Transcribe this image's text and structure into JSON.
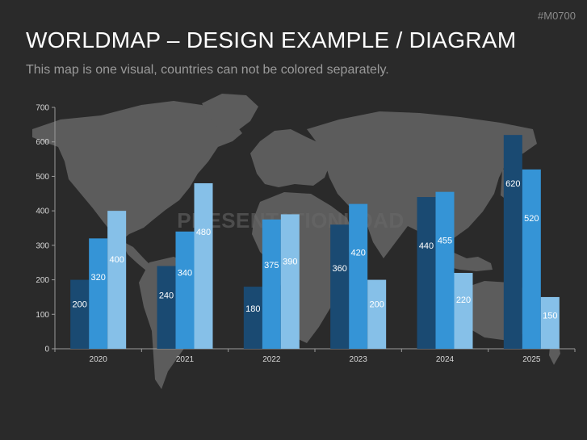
{
  "slide_code": "#M0700",
  "title": "WORLDMAP – DESIGN EXAMPLE / DIAGRAM",
  "subtitle": "This map is one visual, countries can not be colored separately.",
  "watermark": "PRESENTATIONLOAD",
  "colors": {
    "background": "#2a2a2a",
    "map": "#5c5c5c",
    "series": [
      "#1a4a72",
      "#3594d6",
      "#86c0e8"
    ],
    "axis": "#9a9a9a"
  },
  "chart_data": {
    "type": "bar",
    "categories": [
      "2020",
      "2021",
      "2022",
      "2023",
      "2024",
      "2025"
    ],
    "series": [
      {
        "values": [
          200,
          240,
          180,
          360,
          440,
          620
        ]
      },
      {
        "values": [
          320,
          340,
          375,
          420,
          455,
          520
        ]
      },
      {
        "values": [
          400,
          480,
          390,
          200,
          220,
          150
        ]
      }
    ],
    "y_ticks": [
      0,
      100,
      200,
      300,
      400,
      500,
      600,
      700
    ],
    "ylim": [
      0,
      700
    ],
    "grid": false,
    "title": "",
    "xlabel": "",
    "ylabel": ""
  }
}
